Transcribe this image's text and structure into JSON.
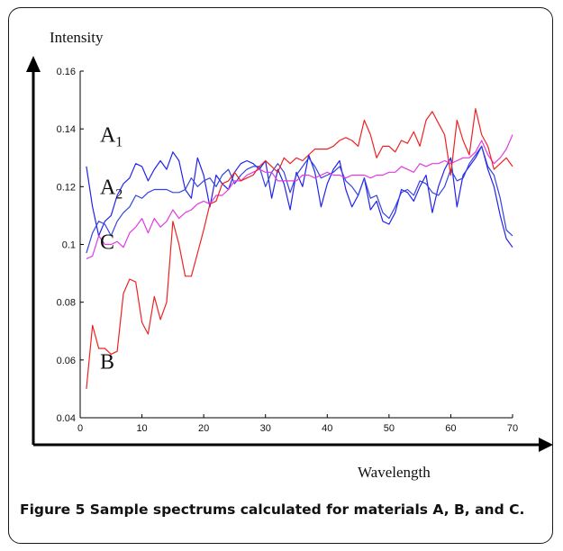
{
  "chart_data": {
    "type": "line",
    "title": "",
    "ylabel": "Intensity",
    "xlabel": "Wavelength",
    "xlim": [
      0,
      70
    ],
    "ylim": [
      0.04,
      0.16
    ],
    "xticks": [
      0,
      10,
      20,
      30,
      40,
      50,
      60,
      70
    ],
    "yticks": [
      0.04,
      0.06,
      0.08,
      0.1,
      0.12,
      0.14,
      0.16
    ],
    "xtick_labels": [
      "0",
      "10",
      "20",
      "30",
      "40",
      "50",
      "60",
      "70"
    ],
    "ytick_labels": [
      "0.04",
      "0.06",
      "0.08",
      "0.1",
      "0.12",
      "0.14",
      "0.16"
    ],
    "grid": false,
    "annotations": [
      {
        "text": "A",
        "sub": "1",
        "x": 3.2,
        "y": 0.1355,
        "series": "A1"
      },
      {
        "text": "A",
        "sub": "2",
        "x": 3.2,
        "y": 0.1175,
        "series": "A2"
      },
      {
        "text": "C",
        "sub": "",
        "x": 3.2,
        "y": 0.0985,
        "series": "C"
      },
      {
        "text": "B",
        "sub": "",
        "x": 3.2,
        "y": 0.057,
        "series": "B"
      }
    ],
    "series": [
      {
        "id": "A1",
        "color": "#2222ee",
        "x": [
          1,
          2,
          3,
          4,
          5,
          6,
          7,
          8,
          9,
          10,
          11,
          12,
          13,
          14,
          15,
          16,
          17,
          18,
          19,
          20,
          21,
          22,
          23,
          24,
          25,
          26,
          27,
          28,
          29,
          30,
          31,
          32,
          33,
          34,
          35,
          36,
          37,
          38,
          39,
          40,
          41,
          42,
          43,
          44,
          45,
          46,
          47,
          48,
          49,
          50,
          51,
          52,
          53,
          54,
          55,
          56,
          57,
          58,
          59,
          60,
          61,
          62,
          63,
          64,
          65,
          66,
          67,
          68,
          69,
          70
        ],
        "values": [
          0.127,
          0.113,
          0.103,
          0.108,
          0.11,
          0.117,
          0.121,
          0.123,
          0.128,
          0.127,
          0.122,
          0.126,
          0.129,
          0.126,
          0.132,
          0.129,
          0.119,
          0.116,
          0.13,
          0.124,
          0.113,
          0.124,
          0.121,
          0.119,
          0.125,
          0.128,
          0.129,
          0.128,
          0.126,
          0.129,
          0.116,
          0.126,
          0.121,
          0.112,
          0.125,
          0.12,
          0.131,
          0.125,
          0.113,
          0.121,
          0.126,
          0.129,
          0.119,
          0.113,
          0.117,
          0.123,
          0.112,
          0.115,
          0.108,
          0.107,
          0.111,
          0.119,
          0.118,
          0.115,
          0.12,
          0.124,
          0.111,
          0.12,
          0.126,
          0.13,
          0.113,
          0.124,
          0.127,
          0.13,
          0.134,
          0.126,
          0.12,
          0.11,
          0.102,
          0.099
        ]
      },
      {
        "id": "A2",
        "color": "#3344dd",
        "x": [
          1,
          2,
          3,
          4,
          5,
          6,
          7,
          8,
          9,
          10,
          11,
          12,
          13,
          14,
          15,
          16,
          17,
          18,
          19,
          20,
          21,
          22,
          23,
          24,
          25,
          26,
          27,
          28,
          29,
          30,
          31,
          32,
          33,
          34,
          35,
          36,
          37,
          38,
          39,
          40,
          41,
          42,
          43,
          44,
          45,
          46,
          47,
          48,
          49,
          50,
          51,
          52,
          53,
          54,
          55,
          56,
          57,
          58,
          59,
          60,
          61,
          62,
          63,
          64,
          65,
          66,
          67,
          68,
          69,
          70
        ],
        "values": [
          0.097,
          0.104,
          0.108,
          0.107,
          0.103,
          0.108,
          0.111,
          0.113,
          0.117,
          0.116,
          0.118,
          0.119,
          0.119,
          0.119,
          0.118,
          0.118,
          0.119,
          0.123,
          0.12,
          0.122,
          0.123,
          0.12,
          0.124,
          0.126,
          0.121,
          0.124,
          0.126,
          0.127,
          0.127,
          0.12,
          0.125,
          0.128,
          0.125,
          0.118,
          0.124,
          0.127,
          0.13,
          0.127,
          0.123,
          0.124,
          0.125,
          0.127,
          0.122,
          0.12,
          0.117,
          0.123,
          0.116,
          0.117,
          0.111,
          0.109,
          0.113,
          0.118,
          0.119,
          0.117,
          0.122,
          0.121,
          0.118,
          0.117,
          0.12,
          0.126,
          0.122,
          0.123,
          0.128,
          0.131,
          0.134,
          0.127,
          0.124,
          0.116,
          0.105,
          0.103
        ]
      },
      {
        "id": "C",
        "color": "#e23ae2",
        "x": [
          1,
          2,
          3,
          4,
          5,
          6,
          7,
          8,
          9,
          10,
          11,
          12,
          13,
          14,
          15,
          16,
          17,
          18,
          19,
          20,
          21,
          22,
          23,
          24,
          25,
          26,
          27,
          28,
          29,
          30,
          31,
          32,
          33,
          34,
          35,
          36,
          37,
          38,
          39,
          40,
          41,
          42,
          43,
          44,
          45,
          46,
          47,
          48,
          49,
          50,
          51,
          52,
          53,
          54,
          55,
          56,
          57,
          58,
          59,
          60,
          61,
          62,
          63,
          64,
          65,
          66,
          67,
          68,
          69,
          70
        ],
        "values": [
          0.095,
          0.096,
          0.103,
          0.1,
          0.1,
          0.101,
          0.099,
          0.104,
          0.106,
          0.109,
          0.104,
          0.109,
          0.106,
          0.108,
          0.112,
          0.109,
          0.111,
          0.112,
          0.114,
          0.115,
          0.114,
          0.117,
          0.117,
          0.119,
          0.122,
          0.122,
          0.124,
          0.125,
          0.126,
          0.125,
          0.125,
          0.122,
          0.122,
          0.122,
          0.122,
          0.124,
          0.124,
          0.123,
          0.124,
          0.125,
          0.124,
          0.124,
          0.123,
          0.124,
          0.124,
          0.124,
          0.123,
          0.124,
          0.124,
          0.125,
          0.125,
          0.127,
          0.126,
          0.125,
          0.128,
          0.127,
          0.128,
          0.128,
          0.129,
          0.128,
          0.129,
          0.13,
          0.13,
          0.132,
          0.136,
          0.131,
          0.128,
          0.13,
          0.133,
          0.138
        ]
      },
      {
        "id": "B",
        "color": "#ee2222",
        "x": [
          1,
          2,
          3,
          4,
          5,
          6,
          7,
          8,
          9,
          10,
          11,
          12,
          13,
          14,
          15,
          16,
          17,
          18,
          19,
          20,
          21,
          22,
          23,
          24,
          25,
          26,
          27,
          28,
          29,
          30,
          31,
          32,
          33,
          34,
          35,
          36,
          37,
          38,
          39,
          40,
          41,
          42,
          43,
          44,
          45,
          46,
          47,
          48,
          49,
          50,
          51,
          52,
          53,
          54,
          55,
          56,
          57,
          58,
          59,
          60,
          61,
          62,
          63,
          64,
          65,
          66,
          67,
          68,
          69,
          70
        ],
        "values": [
          0.05,
          0.072,
          0.064,
          0.064,
          0.062,
          0.063,
          0.083,
          0.088,
          0.087,
          0.073,
          0.069,
          0.082,
          0.074,
          0.08,
          0.108,
          0.1,
          0.089,
          0.089,
          0.097,
          0.105,
          0.114,
          0.115,
          0.121,
          0.122,
          0.125,
          0.122,
          0.123,
          0.124,
          0.127,
          0.129,
          0.127,
          0.125,
          0.13,
          0.128,
          0.13,
          0.129,
          0.131,
          0.133,
          0.133,
          0.133,
          0.134,
          0.136,
          0.137,
          0.136,
          0.134,
          0.143,
          0.138,
          0.13,
          0.134,
          0.134,
          0.132,
          0.136,
          0.135,
          0.139,
          0.134,
          0.143,
          0.146,
          0.142,
          0.138,
          0.124,
          0.143,
          0.136,
          0.131,
          0.147,
          0.138,
          0.134,
          0.126,
          0.128,
          0.13,
          0.127
        ]
      }
    ]
  },
  "caption": {
    "label": "Figure 5",
    "text": " Sample spectrums calculated for materials A, B, and C."
  }
}
